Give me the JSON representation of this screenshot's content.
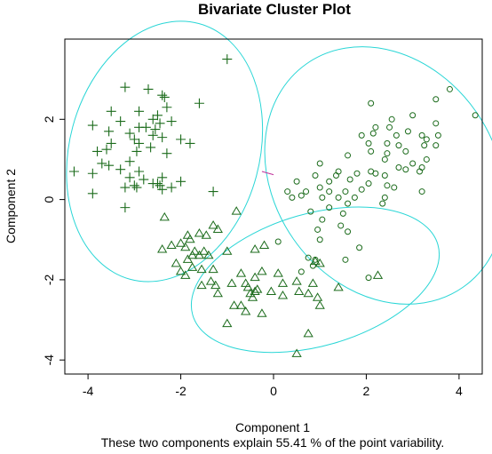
{
  "chart_data": {
    "type": "scatter",
    "title": "Bivariate Cluster Plot",
    "xlabel": "Component 1",
    "ylabel": "Component 2",
    "subtitle": "These two components explain 55.41 % of the point variability.",
    "xlim": [
      -4.5,
      4.5
    ],
    "ylim": [
      -4.35,
      4.0
    ],
    "xticks": [
      -4,
      -2,
      0,
      2,
      4
    ],
    "yticks": [
      -4,
      -2,
      0,
      2
    ],
    "grid": false,
    "colors": {
      "points": "#1b6b1b",
      "ellipse": "#2ad6d6",
      "separator": "#c0309a",
      "axis": "#000000"
    },
    "separator": [
      [
        -0.25,
        0.7
      ],
      [
        0.0,
        0.62
      ]
    ],
    "ellipses": [
      {
        "cx": -2.35,
        "cy": 1.2,
        "rx": 2.05,
        "ry": 3.3,
        "rot": 15
      },
      {
        "cx": 2.4,
        "cy": 0.6,
        "rx": 2.4,
        "ry": 3.4,
        "rot": -35
      },
      {
        "cx": 0.9,
        "cy": -2.0,
        "rx": 2.75,
        "ry": 1.65,
        "rot": -16
      }
    ],
    "series": [
      {
        "marker": "plus",
        "points": [
          [
            -1.0,
            3.5
          ],
          [
            -3.2,
            2.8
          ],
          [
            -2.7,
            2.75
          ],
          [
            -2.4,
            2.6
          ],
          [
            -2.35,
            2.55
          ],
          [
            -2.3,
            2.3
          ],
          [
            -1.6,
            2.4
          ],
          [
            -2.9,
            2.2
          ],
          [
            -3.5,
            2.2
          ],
          [
            -2.5,
            2.1
          ],
          [
            -2.6,
            2.0
          ],
          [
            -3.3,
            1.95
          ],
          [
            -2.2,
            1.95
          ],
          [
            -2.45,
            1.9
          ],
          [
            -2.9,
            1.8
          ],
          [
            -2.75,
            1.8
          ],
          [
            -2.55,
            1.75
          ],
          [
            -3.1,
            1.65
          ],
          [
            -3.9,
            1.85
          ],
          [
            -3.55,
            1.7
          ],
          [
            -2.6,
            1.6
          ],
          [
            -2.4,
            1.55
          ],
          [
            -3.5,
            1.4
          ],
          [
            -3.0,
            1.5
          ],
          [
            -2.9,
            1.4
          ],
          [
            -1.8,
            1.4
          ],
          [
            -2.65,
            1.3
          ],
          [
            -3.6,
            1.25
          ],
          [
            -3.8,
            1.2
          ],
          [
            -2.0,
            1.5
          ],
          [
            -2.95,
            1.2
          ],
          [
            -2.3,
            1.15
          ],
          [
            -3.7,
            0.9
          ],
          [
            -3.55,
            0.85
          ],
          [
            -3.1,
            0.95
          ],
          [
            -3.3,
            0.75
          ],
          [
            -2.9,
            0.7
          ],
          [
            -3.1,
            0.55
          ],
          [
            -2.8,
            0.5
          ],
          [
            -2.4,
            0.55
          ],
          [
            -2.0,
            0.45
          ],
          [
            -4.3,
            0.7
          ],
          [
            -3.9,
            0.65
          ],
          [
            -2.5,
            0.4
          ],
          [
            -3.0,
            0.35
          ],
          [
            -3.2,
            0.3
          ],
          [
            -2.95,
            0.3
          ],
          [
            -2.2,
            0.3
          ],
          [
            -2.4,
            0.25
          ],
          [
            -1.3,
            0.2
          ],
          [
            -3.9,
            0.15
          ],
          [
            -3.2,
            -0.2
          ],
          [
            -2.6,
            0.4
          ],
          [
            -2.45,
            0.35
          ]
        ]
      },
      {
        "marker": "circle",
        "points": [
          [
            3.8,
            2.75
          ],
          [
            3.5,
            2.5
          ],
          [
            4.35,
            2.1
          ],
          [
            2.1,
            2.4
          ],
          [
            2.55,
            2.0
          ],
          [
            3.0,
            2.1
          ],
          [
            2.2,
            1.8
          ],
          [
            2.5,
            1.8
          ],
          [
            3.5,
            1.9
          ],
          [
            1.9,
            1.6
          ],
          [
            2.15,
            1.65
          ],
          [
            2.65,
            1.6
          ],
          [
            2.9,
            1.7
          ],
          [
            3.2,
            1.6
          ],
          [
            3.3,
            1.5
          ],
          [
            3.55,
            1.6
          ],
          [
            2.05,
            1.4
          ],
          [
            2.45,
            1.4
          ],
          [
            2.7,
            1.35
          ],
          [
            3.25,
            1.35
          ],
          [
            3.5,
            1.35
          ],
          [
            2.1,
            1.2
          ],
          [
            2.45,
            1.15
          ],
          [
            2.85,
            1.2
          ],
          [
            2.4,
            1.0
          ],
          [
            3.0,
            0.9
          ],
          [
            3.3,
            1.0
          ],
          [
            1.6,
            1.1
          ],
          [
            1.0,
            0.9
          ],
          [
            2.7,
            0.8
          ],
          [
            2.85,
            0.75
          ],
          [
            3.2,
            0.8
          ],
          [
            1.4,
            0.7
          ],
          [
            2.1,
            0.7
          ],
          [
            3.15,
            0.7
          ],
          [
            2.4,
            0.6
          ],
          [
            2.2,
            0.65
          ],
          [
            1.35,
            0.6
          ],
          [
            1.8,
            0.65
          ],
          [
            0.9,
            0.6
          ],
          [
            1.65,
            0.5
          ],
          [
            1.2,
            0.45
          ],
          [
            0.5,
            0.45
          ],
          [
            2.05,
            0.4
          ],
          [
            2.45,
            0.35
          ],
          [
            1.0,
            0.3
          ],
          [
            1.55,
            0.2
          ],
          [
            2.6,
            0.3
          ],
          [
            1.2,
            0.2
          ],
          [
            0.7,
            0.2
          ],
          [
            1.9,
            0.25
          ],
          [
            0.3,
            0.2
          ],
          [
            0.6,
            0.1
          ],
          [
            1.4,
            0.05
          ],
          [
            1.75,
            0.05
          ],
          [
            1.05,
            0.05
          ],
          [
            2.4,
            0.05
          ],
          [
            3.2,
            0.2
          ],
          [
            0.4,
            0.05
          ],
          [
            1.2,
            -0.2
          ],
          [
            1.6,
            -0.1
          ],
          [
            2.35,
            -0.1
          ],
          [
            0.8,
            -0.3
          ],
          [
            1.5,
            -0.35
          ],
          [
            1.05,
            -0.5
          ],
          [
            1.45,
            -0.65
          ],
          [
            1.6,
            -0.8
          ],
          [
            0.95,
            -0.75
          ],
          [
            1.0,
            -1.0
          ],
          [
            0.1,
            -1.05
          ],
          [
            1.85,
            -1.2
          ],
          [
            0.75,
            -1.45
          ],
          [
            0.9,
            -1.5
          ],
          [
            1.55,
            -1.5
          ],
          [
            0.85,
            -1.65
          ],
          [
            0.6,
            -1.8
          ],
          [
            2.05,
            -1.95
          ]
        ]
      },
      {
        "marker": "triangle",
        "points": [
          [
            -2.35,
            -0.45
          ],
          [
            -0.8,
            -0.3
          ],
          [
            -1.3,
            -0.65
          ],
          [
            -1.2,
            -0.75
          ],
          [
            -1.45,
            -0.9
          ],
          [
            -1.85,
            -0.9
          ],
          [
            -1.6,
            -0.85
          ],
          [
            -1.8,
            -1.0
          ],
          [
            -2.0,
            -1.1
          ],
          [
            -2.2,
            -1.15
          ],
          [
            -1.9,
            -1.2
          ],
          [
            -1.7,
            -1.3
          ],
          [
            -1.5,
            -1.3
          ],
          [
            -2.4,
            -1.25
          ],
          [
            -1.75,
            -1.4
          ],
          [
            -1.6,
            -1.4
          ],
          [
            -1.4,
            -1.4
          ],
          [
            -1.0,
            -1.3
          ],
          [
            -0.4,
            -1.25
          ],
          [
            -0.2,
            -1.15
          ],
          [
            -1.85,
            -1.5
          ],
          [
            -2.1,
            -1.6
          ],
          [
            -1.75,
            -1.7
          ],
          [
            -1.55,
            -1.75
          ],
          [
            -2.0,
            -1.8
          ],
          [
            -1.9,
            -1.9
          ],
          [
            -1.3,
            -1.75
          ],
          [
            -0.25,
            -1.8
          ],
          [
            -0.7,
            -1.85
          ],
          [
            -0.4,
            -1.95
          ],
          [
            0.1,
            -1.85
          ],
          [
            -1.35,
            -2.05
          ],
          [
            -1.55,
            -2.15
          ],
          [
            -1.25,
            -2.15
          ],
          [
            -0.9,
            -2.1
          ],
          [
            -0.6,
            -2.1
          ],
          [
            -0.55,
            -2.2
          ],
          [
            -0.4,
            -2.3
          ],
          [
            -0.5,
            -2.35
          ],
          [
            -0.45,
            -2.45
          ],
          [
            -0.35,
            -2.25
          ],
          [
            -0.05,
            -2.3
          ],
          [
            0.2,
            -2.1
          ],
          [
            0.5,
            -2.05
          ],
          [
            0.85,
            -2.1
          ],
          [
            1.4,
            -2.2
          ],
          [
            0.55,
            -2.3
          ],
          [
            0.2,
            -2.4
          ],
          [
            0.75,
            -2.35
          ],
          [
            0.95,
            -2.45
          ],
          [
            1.0,
            -2.65
          ],
          [
            -0.85,
            -2.65
          ],
          [
            -0.7,
            -2.65
          ],
          [
            -1.2,
            -2.35
          ],
          [
            -0.6,
            -2.8
          ],
          [
            -0.25,
            -2.85
          ],
          [
            -1.0,
            -3.1
          ],
          [
            0.75,
            -3.35
          ],
          [
            0.5,
            -3.85
          ],
          [
            2.25,
            -1.9
          ],
          [
            0.9,
            -1.55
          ],
          [
            1.0,
            -1.6
          ]
        ]
      }
    ]
  }
}
